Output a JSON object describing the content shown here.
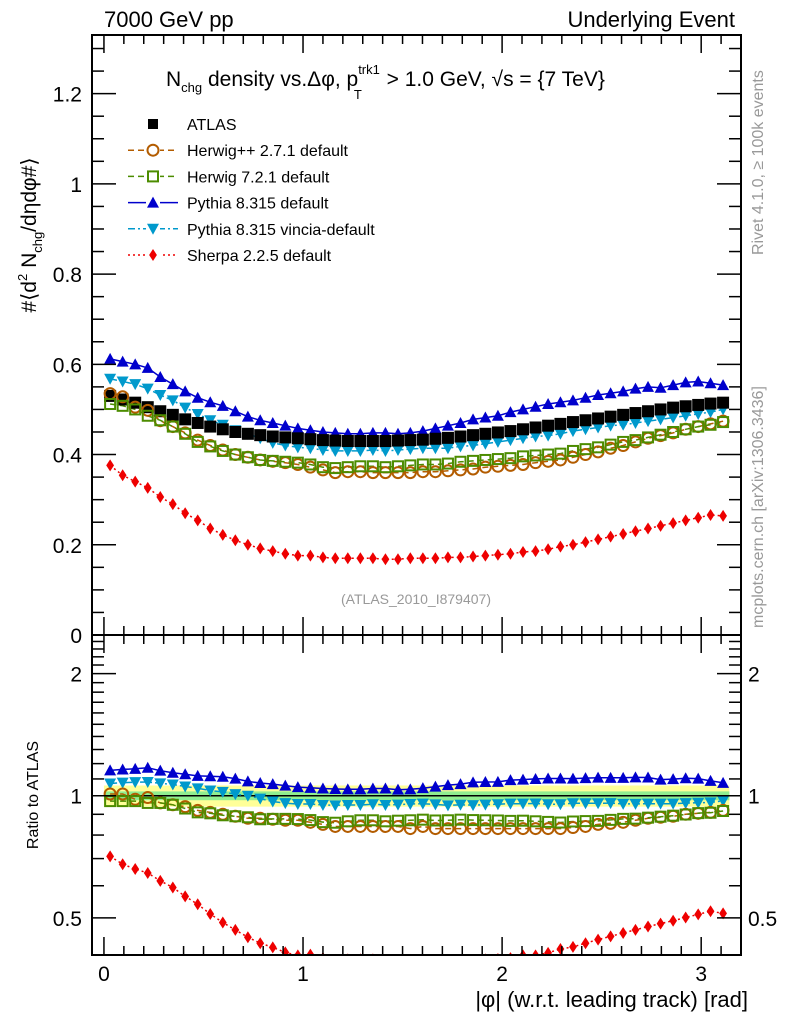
{
  "header": {
    "left": "7000 GeV pp",
    "right": "Underlying Event"
  },
  "side_labels": {
    "top": "Rivet 4.1.0, ≥ 100k events",
    "bottom": "mcplots.cern.ch [arXiv:1306.3436]"
  },
  "chart_data": [
    {
      "panel": "main",
      "type": "scatter",
      "title": "N_chg density vs. Δφ, p_T^trk1 > 1.0 GeV, √s = {7 TeV}",
      "title_parts": {
        "n": "N",
        "n_sub": "chg",
        "mid": " density vs.Δφ, p",
        "p_sup": "trk1",
        "p_sub": "T",
        "rest": " > 1.0 GeV, ",
        "sqrt": "√s",
        "end": " = {7 TeV}"
      },
      "ylabel": "#⟨d² N_chg/dηdφ#⟩",
      "ylabel_parts": {
        "a": "#⟨d",
        "sup": "2",
        "b": " N",
        "sub": "chg",
        "c": "/dηdφ#⟩"
      },
      "xlim": [
        -0.06,
        3.2
      ],
      "ylim": [
        0,
        1.33
      ],
      "yticks": [
        0,
        0.2,
        0.4,
        0.6,
        0.8,
        1,
        1.2
      ],
      "ytick_labels": [
        "0",
        "0.2",
        "0.4",
        "0.6",
        "0.8",
        "1",
        "1.2"
      ],
      "annotation": "(ATLAS_2010_I879407)",
      "legend_position": "top-left",
      "x": [
        0.031,
        0.094,
        0.157,
        0.22,
        0.283,
        0.346,
        0.408,
        0.471,
        0.534,
        0.597,
        0.66,
        0.723,
        0.785,
        0.848,
        0.911,
        0.974,
        1.037,
        1.1,
        1.162,
        1.225,
        1.288,
        1.351,
        1.414,
        1.477,
        1.539,
        1.602,
        1.665,
        1.728,
        1.791,
        1.854,
        1.916,
        1.979,
        2.042,
        2.105,
        2.168,
        2.231,
        2.293,
        2.356,
        2.419,
        2.482,
        2.545,
        2.608,
        2.67,
        2.733,
        2.796,
        2.859,
        2.922,
        2.985,
        3.047,
        3.11
      ],
      "series": [
        {
          "name": "ATLAS",
          "color": "#000000",
          "marker": "square-filled",
          "line": "none",
          "values": [
            0.53,
            0.522,
            0.515,
            0.505,
            0.496,
            0.488,
            0.478,
            0.47,
            0.462,
            0.456,
            0.45,
            0.446,
            0.443,
            0.44,
            0.438,
            0.436,
            0.434,
            0.432,
            0.431,
            0.43,
            0.43,
            0.43,
            0.43,
            0.431,
            0.432,
            0.433,
            0.435,
            0.437,
            0.44,
            0.443,
            0.446,
            0.449,
            0.452,
            0.456,
            0.46,
            0.464,
            0.468,
            0.472,
            0.476,
            0.48,
            0.484,
            0.488,
            0.492,
            0.496,
            0.5,
            0.504,
            0.507,
            0.51,
            0.513,
            0.515
          ]
        },
        {
          "name": "Herwig++ 2.7.1 default",
          "color": "#b35c00",
          "marker": "circle-open",
          "line": "dashed",
          "values": [
            0.535,
            0.528,
            0.505,
            0.498,
            0.475,
            0.462,
            0.448,
            0.432,
            0.42,
            0.41,
            0.4,
            0.394,
            0.388,
            0.385,
            0.382,
            0.378,
            0.372,
            0.366,
            0.36,
            0.362,
            0.362,
            0.36,
            0.36,
            0.36,
            0.36,
            0.362,
            0.362,
            0.364,
            0.366,
            0.368,
            0.372,
            0.374,
            0.376,
            0.378,
            0.382,
            0.385,
            0.388,
            0.394,
            0.4,
            0.406,
            0.414,
            0.42,
            0.428,
            0.436,
            0.442,
            0.448,
            0.456,
            0.462,
            0.468,
            0.474
          ]
        },
        {
          "name": "Herwig 7.2.1 default",
          "color": "#4c8c00",
          "marker": "square-open",
          "line": "dashed",
          "values": [
            0.512,
            0.508,
            0.5,
            0.486,
            0.476,
            0.462,
            0.446,
            0.428,
            0.418,
            0.408,
            0.4,
            0.394,
            0.388,
            0.386,
            0.384,
            0.382,
            0.378,
            0.372,
            0.37,
            0.372,
            0.374,
            0.374,
            0.372,
            0.374,
            0.376,
            0.378,
            0.378,
            0.38,
            0.384,
            0.386,
            0.388,
            0.39,
            0.392,
            0.396,
            0.398,
            0.4,
            0.402,
            0.408,
            0.412,
            0.416,
            0.422,
            0.428,
            0.432,
            0.438,
            0.444,
            0.45,
            0.456,
            0.462,
            0.466,
            0.472
          ]
        },
        {
          "name": "Pythia 8.315 default",
          "color": "#0000cc",
          "marker": "triangle-up-filled",
          "line": "solid",
          "values": [
            0.612,
            0.606,
            0.6,
            0.592,
            0.572,
            0.556,
            0.54,
            0.526,
            0.516,
            0.508,
            0.496,
            0.484,
            0.476,
            0.47,
            0.464,
            0.458,
            0.454,
            0.45,
            0.448,
            0.446,
            0.446,
            0.448,
            0.448,
            0.446,
            0.448,
            0.452,
            0.458,
            0.464,
            0.47,
            0.478,
            0.482,
            0.486,
            0.494,
            0.5,
            0.506,
            0.512,
            0.516,
            0.52,
            0.526,
            0.532,
            0.536,
            0.54,
            0.546,
            0.55,
            0.548,
            0.554,
            0.56,
            0.562,
            0.558,
            0.554
          ]
        },
        {
          "name": "Pythia 8.315 vincia-default",
          "color": "#0099cc",
          "marker": "triangle-down-filled",
          "line": "dashdot",
          "values": [
            0.568,
            0.562,
            0.556,
            0.546,
            0.532,
            0.52,
            0.504,
            0.49,
            0.476,
            0.466,
            0.454,
            0.446,
            0.436,
            0.426,
            0.42,
            0.416,
            0.414,
            0.41,
            0.408,
            0.408,
            0.408,
            0.41,
            0.408,
            0.41,
            0.412,
            0.414,
            0.414,
            0.414,
            0.418,
            0.42,
            0.424,
            0.428,
            0.432,
            0.436,
            0.44,
            0.442,
            0.446,
            0.452,
            0.456,
            0.46,
            0.464,
            0.466,
            0.47,
            0.474,
            0.478,
            0.482,
            0.486,
            0.49,
            0.494,
            0.5
          ]
        },
        {
          "name": "Sherpa 2.2.5 default",
          "color": "#ee0000",
          "marker": "diamond-filled",
          "line": "dotted",
          "values": [
            0.376,
            0.354,
            0.34,
            0.326,
            0.306,
            0.29,
            0.27,
            0.254,
            0.236,
            0.222,
            0.21,
            0.2,
            0.192,
            0.186,
            0.18,
            0.176,
            0.176,
            0.172,
            0.17,
            0.17,
            0.17,
            0.17,
            0.168,
            0.168,
            0.17,
            0.17,
            0.17,
            0.172,
            0.172,
            0.174,
            0.176,
            0.178,
            0.18,
            0.184,
            0.186,
            0.19,
            0.196,
            0.2,
            0.206,
            0.212,
            0.218,
            0.224,
            0.23,
            0.236,
            0.242,
            0.248,
            0.254,
            0.26,
            0.266,
            0.264
          ]
        }
      ]
    },
    {
      "panel": "ratio",
      "type": "scatter",
      "ylabel": "Ratio to ATLAS",
      "xlabel": "|φ| (w.r.t. leading track) [rad]",
      "yscale": "log",
      "xlim": [
        -0.06,
        3.2
      ],
      "ylim": [
        0.405,
        2.49
      ],
      "xticks": [
        0,
        1,
        2,
        3
      ],
      "xtick_labels": [
        "0",
        "1",
        "2",
        "3"
      ],
      "yticks": [
        0.5,
        1,
        2
      ],
      "ytick_labels": [
        "0.5",
        "1",
        "2"
      ],
      "reference_line": 1,
      "uncertainty_bands": [
        {
          "name": "stat",
          "color": "#90ee90",
          "halfwidth": 0.025
        },
        {
          "name": "total",
          "color": "#ffff99",
          "halfwidth": 0.06
        }
      ],
      "series_note": "ratio = model / ATLAS for each series above",
      "series": [
        {
          "name": "Herwig++ 2.7.1 default",
          "values": [
            1.01,
            1.01,
            0.98,
            0.99,
            0.96,
            0.95,
            0.94,
            0.92,
            0.91,
            0.9,
            0.89,
            0.88,
            0.88,
            0.875,
            0.87,
            0.87,
            0.86,
            0.85,
            0.84,
            0.84,
            0.84,
            0.84,
            0.84,
            0.84,
            0.83,
            0.84,
            0.83,
            0.83,
            0.83,
            0.83,
            0.83,
            0.83,
            0.83,
            0.83,
            0.83,
            0.83,
            0.83,
            0.835,
            0.84,
            0.85,
            0.855,
            0.86,
            0.87,
            0.88,
            0.885,
            0.89,
            0.9,
            0.905,
            0.91,
            0.92
          ]
        },
        {
          "name": "Herwig 7.2.1 default",
          "values": [
            0.97,
            0.97,
            0.97,
            0.96,
            0.96,
            0.95,
            0.93,
            0.91,
            0.905,
            0.895,
            0.89,
            0.885,
            0.875,
            0.877,
            0.877,
            0.876,
            0.871,
            0.861,
            0.858,
            0.865,
            0.87,
            0.87,
            0.865,
            0.868,
            0.87,
            0.873,
            0.869,
            0.87,
            0.873,
            0.871,
            0.87,
            0.869,
            0.867,
            0.868,
            0.865,
            0.862,
            0.859,
            0.864,
            0.866,
            0.867,
            0.872,
            0.877,
            0.878,
            0.883,
            0.888,
            0.893,
            0.899,
            0.906,
            0.908,
            0.917
          ]
        },
        {
          "name": "Pythia 8.315 default",
          "values": [
            1.155,
            1.161,
            1.165,
            1.172,
            1.153,
            1.139,
            1.13,
            1.119,
            1.117,
            1.114,
            1.102,
            1.085,
            1.075,
            1.068,
            1.059,
            1.05,
            1.046,
            1.042,
            1.039,
            1.037,
            1.037,
            1.042,
            1.042,
            1.035,
            1.037,
            1.044,
            1.053,
            1.062,
            1.068,
            1.079,
            1.081,
            1.082,
            1.093,
            1.096,
            1.1,
            1.103,
            1.103,
            1.102,
            1.105,
            1.108,
            1.107,
            1.107,
            1.11,
            1.109,
            1.096,
            1.099,
            1.104,
            1.102,
            1.088,
            1.076
          ]
        },
        {
          "name": "Pythia 8.315 vincia-default",
          "values": [
            1.072,
            1.077,
            1.08,
            1.081,
            1.073,
            1.066,
            1.054,
            1.043,
            1.03,
            1.022,
            1.009,
            1.0,
            0.984,
            0.968,
            0.959,
            0.954,
            0.954,
            0.949,
            0.947,
            0.949,
            0.949,
            0.953,
            0.949,
            0.951,
            0.954,
            0.956,
            0.952,
            0.947,
            0.95,
            0.948,
            0.951,
            0.953,
            0.956,
            0.956,
            0.957,
            0.953,
            0.953,
            0.958,
            0.958,
            0.958,
            0.959,
            0.955,
            0.955,
            0.956,
            0.956,
            0.956,
            0.959,
            0.961,
            0.963,
            0.971
          ]
        },
        {
          "name": "Sherpa 2.2.5 default",
          "values": [
            0.709,
            0.678,
            0.66,
            0.645,
            0.617,
            0.594,
            0.565,
            0.54,
            0.511,
            0.487,
            0.467,
            0.448,
            0.433,
            0.423,
            0.411,
            0.404,
            0.406,
            0.398,
            0.394,
            0.395,
            0.395,
            0.395,
            0.391,
            0.39,
            0.394,
            0.393,
            0.391,
            0.394,
            0.391,
            0.393,
            0.395,
            0.396,
            0.398,
            0.404,
            0.404,
            0.41,
            0.419,
            0.424,
            0.433,
            0.442,
            0.45,
            0.459,
            0.467,
            0.476,
            0.484,
            0.492,
            0.501,
            0.51,
            0.519,
            0.513
          ]
        }
      ]
    }
  ]
}
